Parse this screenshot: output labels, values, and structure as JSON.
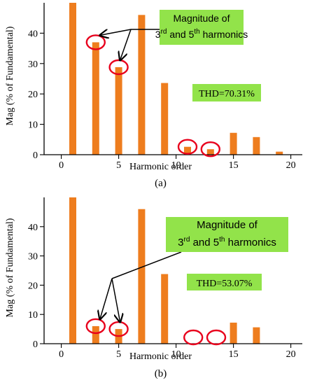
{
  "colors": {
    "bar": "#EE7D1E",
    "circle": "#E8001C",
    "label_bg": "#92E34A",
    "axis": "#000000"
  },
  "chart_data": [
    {
      "type": "bar",
      "panel_label": "(a)",
      "xlabel": "Harmonic order",
      "ylabel": "Mag (% of Fundamental)",
      "xlim": [
        -1.5,
        21
      ],
      "ylim": [
        0,
        50
      ],
      "xticks": [
        0,
        5,
        10,
        15,
        20
      ],
      "yticks": [
        0,
        10,
        20,
        30,
        40
      ],
      "x": [
        1,
        3,
        5,
        7,
        9,
        11,
        13,
        15,
        17,
        19
      ],
      "values": [
        50,
        37,
        28.8,
        46,
        23.6,
        2.6,
        1.8,
        7.2,
        5.8,
        1
      ],
      "annotation": {
        "line1": "Magnitude of",
        "n3": "3",
        "sup3": "rd",
        "mid": " and 5",
        "sup5": "th",
        "tail": " harmonics"
      },
      "thd": "THD=70.31%",
      "circled_x": [
        3,
        5,
        11,
        13
      ]
    },
    {
      "type": "bar",
      "panel_label": "(b)",
      "xlabel": "Harmonic order",
      "ylabel": "Mag (% of Fundamental)",
      "xlim": [
        -1.5,
        21
      ],
      "ylim": [
        0,
        50
      ],
      "xticks": [
        0,
        5,
        10,
        15,
        20
      ],
      "yticks": [
        0,
        10,
        20,
        30,
        40
      ],
      "x": [
        1,
        3,
        5,
        7,
        9,
        11,
        13,
        15,
        17
      ],
      "values": [
        50,
        6,
        5,
        46,
        23.8,
        0,
        0,
        7.2,
        5.6
      ],
      "annotation": {
        "line1": "Magnitude of",
        "n3": "3",
        "sup3": "rd",
        "mid": " and 5",
        "sup5": "th",
        "tail": " harmonics"
      },
      "thd": "THD=53.07%",
      "circled_x": [
        3,
        5,
        11.5,
        13.5
      ]
    }
  ]
}
